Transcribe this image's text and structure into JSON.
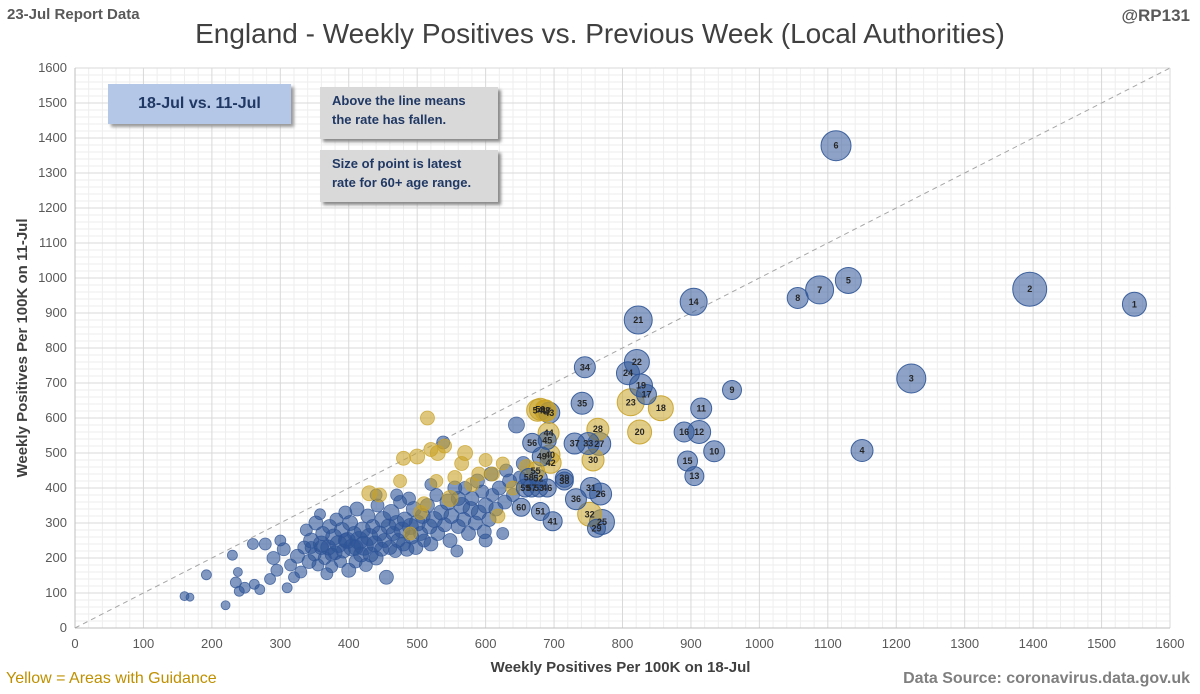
{
  "report_tag": "23-Jul Report Data",
  "handle": "@RP131",
  "legend_note": "Yellow = Areas with Guidance",
  "source_note": "Data Source: coronavirus.data.gov.uk",
  "week_label": "18-Jul vs. 11-Jul",
  "note_above": [
    "Above the line means",
    "the rate has fallen."
  ],
  "note_size": [
    "Size of point is latest",
    "rate for 60+ age range."
  ],
  "colors": {
    "blue": "#2f5597",
    "gold": "#c9a227",
    "grid": "#d9d9d9",
    "diag": "#a6a6a6"
  },
  "chart_data": {
    "type": "scatter",
    "title": "England - Weekly Positives vs. Previous Week (Local Authorities)",
    "xlabel": "Weekly Positives Per 100K on 18-Jul",
    "ylabel": "Weekly Positives Per 100K on 11-Jul",
    "xlim": [
      0,
      1600
    ],
    "ylim": [
      0,
      1600
    ],
    "xticks": [
      "0",
      "100",
      "200",
      "300",
      "400",
      "500",
      "600",
      "700",
      "800",
      "900",
      "1000",
      "1100",
      "1200",
      "1300",
      "1400",
      "1500",
      "1600"
    ],
    "yticks": [
      "0",
      "100",
      "200",
      "300",
      "400",
      "500",
      "600",
      "700",
      "800",
      "900",
      "1000",
      "1100",
      "1200",
      "1300",
      "1400",
      "1500",
      "1600"
    ],
    "reference_line": "y = x",
    "labeled_points": [
      {
        "label": "1",
        "x": 1548,
        "y": 925,
        "size": 20,
        "group": "blue"
      },
      {
        "label": "2",
        "x": 1395,
        "y": 968,
        "size": 30,
        "group": "blue"
      },
      {
        "label": "3",
        "x": 1222,
        "y": 713,
        "size": 25,
        "group": "blue"
      },
      {
        "label": "4",
        "x": 1150,
        "y": 507,
        "size": 18,
        "group": "blue"
      },
      {
        "label": "5",
        "x": 1130,
        "y": 993,
        "size": 22,
        "group": "blue"
      },
      {
        "label": "6",
        "x": 1112,
        "y": 1378,
        "size": 26,
        "group": "blue"
      },
      {
        "label": "7",
        "x": 1088,
        "y": 966,
        "size": 24,
        "group": "blue"
      },
      {
        "label": "8",
        "x": 1056,
        "y": 943,
        "size": 17,
        "group": "blue"
      },
      {
        "label": "9",
        "x": 960,
        "y": 680,
        "size": 15,
        "group": "blue"
      },
      {
        "label": "10",
        "x": 934,
        "y": 505,
        "size": 17,
        "group": "blue"
      },
      {
        "label": "11",
        "x": 915,
        "y": 627,
        "size": 17,
        "group": "blue"
      },
      {
        "label": "12",
        "x": 912,
        "y": 560,
        "size": 19,
        "group": "blue"
      },
      {
        "label": "13",
        "x": 905,
        "y": 434,
        "size": 15,
        "group": "blue"
      },
      {
        "label": "14",
        "x": 904,
        "y": 932,
        "size": 23,
        "group": "blue"
      },
      {
        "label": "15",
        "x": 895,
        "y": 477,
        "size": 16,
        "group": "blue"
      },
      {
        "label": "16",
        "x": 890,
        "y": 560,
        "size": 16,
        "group": "blue"
      },
      {
        "label": "17",
        "x": 835,
        "y": 667,
        "size": 16,
        "group": "blue"
      },
      {
        "label": "18",
        "x": 856,
        "y": 628,
        "size": 21,
        "group": "gold"
      },
      {
        "label": "19",
        "x": 827,
        "y": 693,
        "size": 19,
        "group": "blue"
      },
      {
        "label": "20",
        "x": 825,
        "y": 560,
        "size": 20,
        "group": "gold"
      },
      {
        "label": "21",
        "x": 823,
        "y": 880,
        "size": 24,
        "group": "blue"
      },
      {
        "label": "22",
        "x": 821,
        "y": 760,
        "size": 21,
        "group": "blue"
      },
      {
        "label": "23",
        "x": 812,
        "y": 645,
        "size": 23,
        "group": "gold"
      },
      {
        "label": "24",
        "x": 808,
        "y": 728,
        "size": 19,
        "group": "blue"
      },
      {
        "label": "25",
        "x": 770,
        "y": 303,
        "size": 21,
        "group": "blue"
      },
      {
        "label": "26",
        "x": 768,
        "y": 383,
        "size": 18,
        "group": "blue"
      },
      {
        "label": "27",
        "x": 766,
        "y": 526,
        "size": 19,
        "group": "blue"
      },
      {
        "label": "28",
        "x": 764,
        "y": 568,
        "size": 18,
        "group": "gold"
      },
      {
        "label": "29",
        "x": 762,
        "y": 285,
        "size": 14,
        "group": "blue"
      },
      {
        "label": "30",
        "x": 757,
        "y": 480,
        "size": 18,
        "group": "gold"
      },
      {
        "label": "31",
        "x": 754,
        "y": 400,
        "size": 17,
        "group": "blue"
      },
      {
        "label": "32",
        "x": 752,
        "y": 325,
        "size": 20,
        "group": "gold"
      },
      {
        "label": "33",
        "x": 750,
        "y": 527,
        "size": 18,
        "group": "blue"
      },
      {
        "label": "34",
        "x": 745,
        "y": 745,
        "size": 17,
        "group": "blue"
      },
      {
        "label": "35",
        "x": 741,
        "y": 642,
        "size": 18,
        "group": "blue"
      },
      {
        "label": "36",
        "x": 732,
        "y": 368,
        "size": 17,
        "group": "blue"
      },
      {
        "label": "37",
        "x": 730,
        "y": 527,
        "size": 17,
        "group": "blue"
      },
      {
        "label": "38",
        "x": 715,
        "y": 420,
        "size": 14,
        "group": "blue"
      },
      {
        "label": "39",
        "x": 715,
        "y": 428,
        "size": 14,
        "group": "blue"
      },
      {
        "label": "40",
        "x": 694,
        "y": 495,
        "size": 16,
        "group": "gold"
      },
      {
        "label": "41",
        "x": 698,
        "y": 305,
        "size": 15,
        "group": "blue"
      },
      {
        "label": "42",
        "x": 695,
        "y": 472,
        "size": 17,
        "group": "gold"
      },
      {
        "label": "43",
        "x": 693,
        "y": 615,
        "size": 17,
        "group": "blue"
      },
      {
        "label": "44",
        "x": 692,
        "y": 557,
        "size": 17,
        "group": "gold"
      },
      {
        "label": "45",
        "x": 690,
        "y": 536,
        "size": 14,
        "group": "blue"
      },
      {
        "label": "46",
        "x": 690,
        "y": 400,
        "size": 14,
        "group": "blue"
      },
      {
        "label": "47",
        "x": 688,
        "y": 620,
        "size": 17,
        "group": "gold"
      },
      {
        "label": "48",
        "x": 687,
        "y": 622,
        "size": 17,
        "group": "gold"
      },
      {
        "label": "49",
        "x": 682,
        "y": 490,
        "size": 15,
        "group": "blue"
      },
      {
        "label": "50",
        "x": 680,
        "y": 625,
        "size": 18,
        "group": "gold"
      },
      {
        "label": "51",
        "x": 680,
        "y": 333,
        "size": 14,
        "group": "blue"
      },
      {
        "label": "52",
        "x": 677,
        "y": 427,
        "size": 14,
        "group": "blue"
      },
      {
        "label": "53",
        "x": 678,
        "y": 400,
        "size": 14,
        "group": "blue"
      },
      {
        "label": "54",
        "x": 676,
        "y": 622,
        "size": 18,
        "group": "gold"
      },
      {
        "label": "55",
        "x": 673,
        "y": 449,
        "size": 14,
        "group": "gold"
      },
      {
        "label": "56",
        "x": 668,
        "y": 529,
        "size": 15,
        "group": "blue"
      },
      {
        "label": "57",
        "x": 667,
        "y": 400,
        "size": 14,
        "group": "blue"
      },
      {
        "label": "58",
        "x": 663,
        "y": 430,
        "size": 14,
        "group": "blue"
      },
      {
        "label": "59",
        "x": 658,
        "y": 400,
        "size": 14,
        "group": "blue"
      },
      {
        "label": "60",
        "x": 652,
        "y": 345,
        "size": 14,
        "group": "blue"
      }
    ],
    "unlabeled_points": [
      [
        160,
        91,
        7,
        "b"
      ],
      [
        168,
        88,
        6,
        "b"
      ],
      [
        192,
        152,
        8,
        "b"
      ],
      [
        220,
        65,
        7,
        "b"
      ],
      [
        230,
        208,
        8,
        "b"
      ],
      [
        235,
        130,
        9,
        "b"
      ],
      [
        238,
        160,
        7,
        "b"
      ],
      [
        240,
        105,
        8,
        "b"
      ],
      [
        248,
        115,
        9,
        "b"
      ],
      [
        260,
        240,
        9,
        "b"
      ],
      [
        262,
        125,
        8,
        "b"
      ],
      [
        270,
        110,
        8,
        "b"
      ],
      [
        278,
        240,
        10,
        "b"
      ],
      [
        285,
        140,
        9,
        "b"
      ],
      [
        290,
        200,
        11,
        "b"
      ],
      [
        295,
        165,
        10,
        "b"
      ],
      [
        300,
        250,
        9,
        "b"
      ],
      [
        305,
        225,
        11,
        "b"
      ],
      [
        310,
        115,
        8,
        "b"
      ],
      [
        315,
        180,
        10,
        "b"
      ],
      [
        320,
        145,
        9,
        "b"
      ],
      [
        325,
        205,
        12,
        "b"
      ],
      [
        330,
        160,
        10,
        "b"
      ],
      [
        335,
        230,
        11,
        "b"
      ],
      [
        338,
        280,
        10,
        "b"
      ],
      [
        342,
        190,
        12,
        "b"
      ],
      [
        345,
        250,
        13,
        "b"
      ],
      [
        350,
        210,
        11,
        "b"
      ],
      [
        352,
        300,
        12,
        "b"
      ],
      [
        355,
        180,
        10,
        "b"
      ],
      [
        358,
        325,
        9,
        "b"
      ],
      [
        360,
        240,
        14,
        "b"
      ],
      [
        362,
        270,
        12,
        "b"
      ],
      [
        365,
        200,
        11,
        "b"
      ],
      [
        368,
        155,
        10,
        "b"
      ],
      [
        370,
        230,
        13,
        "b"
      ],
      [
        372,
        290,
        12,
        "b"
      ],
      [
        375,
        175,
        10,
        "b"
      ],
      [
        378,
        260,
        14,
        "b"
      ],
      [
        380,
        215,
        12,
        "b"
      ],
      [
        382,
        310,
        11,
        "b"
      ],
      [
        385,
        240,
        15,
        "b"
      ],
      [
        388,
        190,
        10,
        "b"
      ],
      [
        390,
        280,
        13,
        "b"
      ],
      [
        392,
        220,
        12,
        "b"
      ],
      [
        395,
        330,
        11,
        "b"
      ],
      [
        398,
        250,
        14,
        "b"
      ],
      [
        400,
        165,
        12,
        "b"
      ],
      [
        402,
        300,
        13,
        "b"
      ],
      [
        405,
        230,
        15,
        "b"
      ],
      [
        408,
        270,
        12,
        "b"
      ],
      [
        410,
        190,
        11,
        "b"
      ],
      [
        412,
        340,
        12,
        "b"
      ],
      [
        415,
        250,
        16,
        "b"
      ],
      [
        418,
        210,
        13,
        "b"
      ],
      [
        420,
        280,
        14,
        "b"
      ],
      [
        422,
        235,
        17,
        "b"
      ],
      [
        425,
        180,
        11,
        "b"
      ],
      [
        428,
        320,
        12,
        "b"
      ],
      [
        430,
        260,
        15,
        "b"
      ],
      [
        432,
        210,
        13,
        "b"
      ],
      [
        435,
        290,
        12,
        "b"
      ],
      [
        438,
        240,
        14,
        "b"
      ],
      [
        440,
        200,
        12,
        "b"
      ],
      [
        442,
        350,
        11,
        "b"
      ],
      [
        445,
        270,
        13,
        "b"
      ],
      [
        448,
        225,
        12,
        "b"
      ],
      [
        450,
        310,
        14,
        "b"
      ],
      [
        452,
        250,
        12,
        "b"
      ],
      [
        455,
        145,
        12,
        "b"
      ],
      [
        458,
        290,
        13,
        "b"
      ],
      [
        460,
        230,
        12,
        "b"
      ],
      [
        462,
        330,
        14,
        "b"
      ],
      [
        465,
        270,
        12,
        "b"
      ],
      [
        468,
        220,
        11,
        "b"
      ],
      [
        470,
        300,
        13,
        "b"
      ],
      [
        472,
        250,
        12,
        "b"
      ],
      [
        475,
        360,
        11,
        "b"
      ],
      [
        478,
        280,
        14,
        "b"
      ],
      [
        480,
        240,
        12,
        "b"
      ],
      [
        482,
        310,
        13,
        "b"
      ],
      [
        485,
        225,
        12,
        "b"
      ],
      [
        488,
        370,
        11,
        "b"
      ],
      [
        490,
        290,
        14,
        "b"
      ],
      [
        492,
        260,
        12,
        "b"
      ],
      [
        495,
        340,
        13,
        "b"
      ],
      [
        498,
        230,
        12,
        "b"
      ],
      [
        500,
        300,
        14,
        "b"
      ],
      [
        505,
        270,
        12,
        "b"
      ],
      [
        508,
        320,
        13,
        "b"
      ],
      [
        510,
        250,
        11,
        "b"
      ],
      [
        515,
        350,
        12,
        "b"
      ],
      [
        518,
        290,
        13,
        "b"
      ],
      [
        520,
        240,
        12,
        "b"
      ],
      [
        525,
        310,
        14,
        "b"
      ],
      [
        528,
        380,
        11,
        "b"
      ],
      [
        530,
        270,
        12,
        "b"
      ],
      [
        535,
        330,
        13,
        "b"
      ],
      [
        538,
        530,
        11,
        "b"
      ],
      [
        540,
        295,
        12,
        "b"
      ],
      [
        545,
        360,
        14,
        "b"
      ],
      [
        548,
        250,
        12,
        "b"
      ],
      [
        550,
        320,
        13,
        "b"
      ],
      [
        555,
        400,
        12,
        "b"
      ],
      [
        558,
        220,
        10,
        "b"
      ],
      [
        560,
        290,
        12,
        "b"
      ],
      [
        565,
        350,
        14,
        "b"
      ],
      [
        568,
        310,
        12,
        "b"
      ],
      [
        570,
        400,
        11,
        "b"
      ],
      [
        575,
        270,
        12,
        "b"
      ],
      [
        578,
        340,
        13,
        "b"
      ],
      [
        580,
        370,
        12,
        "b"
      ],
      [
        585,
        300,
        12,
        "b"
      ],
      [
        588,
        420,
        12,
        "b"
      ],
      [
        590,
        330,
        13,
        "b"
      ],
      [
        595,
        390,
        11,
        "b"
      ],
      [
        598,
        275,
        12,
        "b"
      ],
      [
        600,
        350,
        13,
        "b"
      ],
      [
        605,
        310,
        12,
        "b"
      ],
      [
        608,
        440,
        12,
        "b"
      ],
      [
        610,
        380,
        11,
        "b"
      ],
      [
        615,
        340,
        12,
        "b"
      ],
      [
        620,
        400,
        12,
        "b"
      ],
      [
        625,
        270,
        10,
        "b"
      ],
      [
        628,
        360,
        12,
        "b"
      ],
      [
        630,
        450,
        11,
        "b"
      ],
      [
        635,
        420,
        12,
        "b"
      ],
      [
        640,
        380,
        11,
        "b"
      ],
      [
        645,
        580,
        14,
        "b"
      ],
      [
        650,
        430,
        11,
        "b"
      ],
      [
        655,
        470,
        12,
        "b"
      ],
      [
        600,
        250,
        11,
        "b"
      ],
      [
        560,
        370,
        12,
        "b"
      ],
      [
        520,
        410,
        10,
        "b"
      ],
      [
        470,
        380,
        10,
        "b"
      ],
      [
        440,
        380,
        10,
        "b"
      ],
      [
        410,
        230,
        13,
        "b"
      ],
      [
        395,
        250,
        12,
        "b"
      ],
      [
        375,
        210,
        11,
        "b"
      ],
      [
        360,
        230,
        12,
        "b"
      ],
      [
        345,
        230,
        10,
        "b"
      ],
      [
        430,
        385,
        13,
        "g"
      ],
      [
        445,
        380,
        12,
        "g"
      ],
      [
        475,
        420,
        11,
        "g"
      ],
      [
        480,
        485,
        12,
        "g"
      ],
      [
        490,
        270,
        11,
        "g"
      ],
      [
        500,
        490,
        13,
        "g"
      ],
      [
        505,
        330,
        12,
        "g"
      ],
      [
        510,
        355,
        12,
        "g"
      ],
      [
        515,
        600,
        12,
        "g"
      ],
      [
        520,
        510,
        12,
        "g"
      ],
      [
        528,
        420,
        11,
        "g"
      ],
      [
        530,
        500,
        13,
        "g"
      ],
      [
        540,
        520,
        12,
        "g"
      ],
      [
        548,
        370,
        14,
        "g"
      ],
      [
        555,
        430,
        12,
        "g"
      ],
      [
        565,
        470,
        12,
        "g"
      ],
      [
        570,
        500,
        13,
        "g"
      ],
      [
        580,
        410,
        12,
        "g"
      ],
      [
        590,
        440,
        12,
        "g"
      ],
      [
        600,
        480,
        11,
        "g"
      ],
      [
        610,
        440,
        12,
        "g"
      ],
      [
        618,
        320,
        12,
        "g"
      ],
      [
        625,
        470,
        11,
        "g"
      ],
      [
        640,
        400,
        12,
        "g"
      ],
      [
        660,
        460,
        13,
        "g"
      ]
    ]
  }
}
